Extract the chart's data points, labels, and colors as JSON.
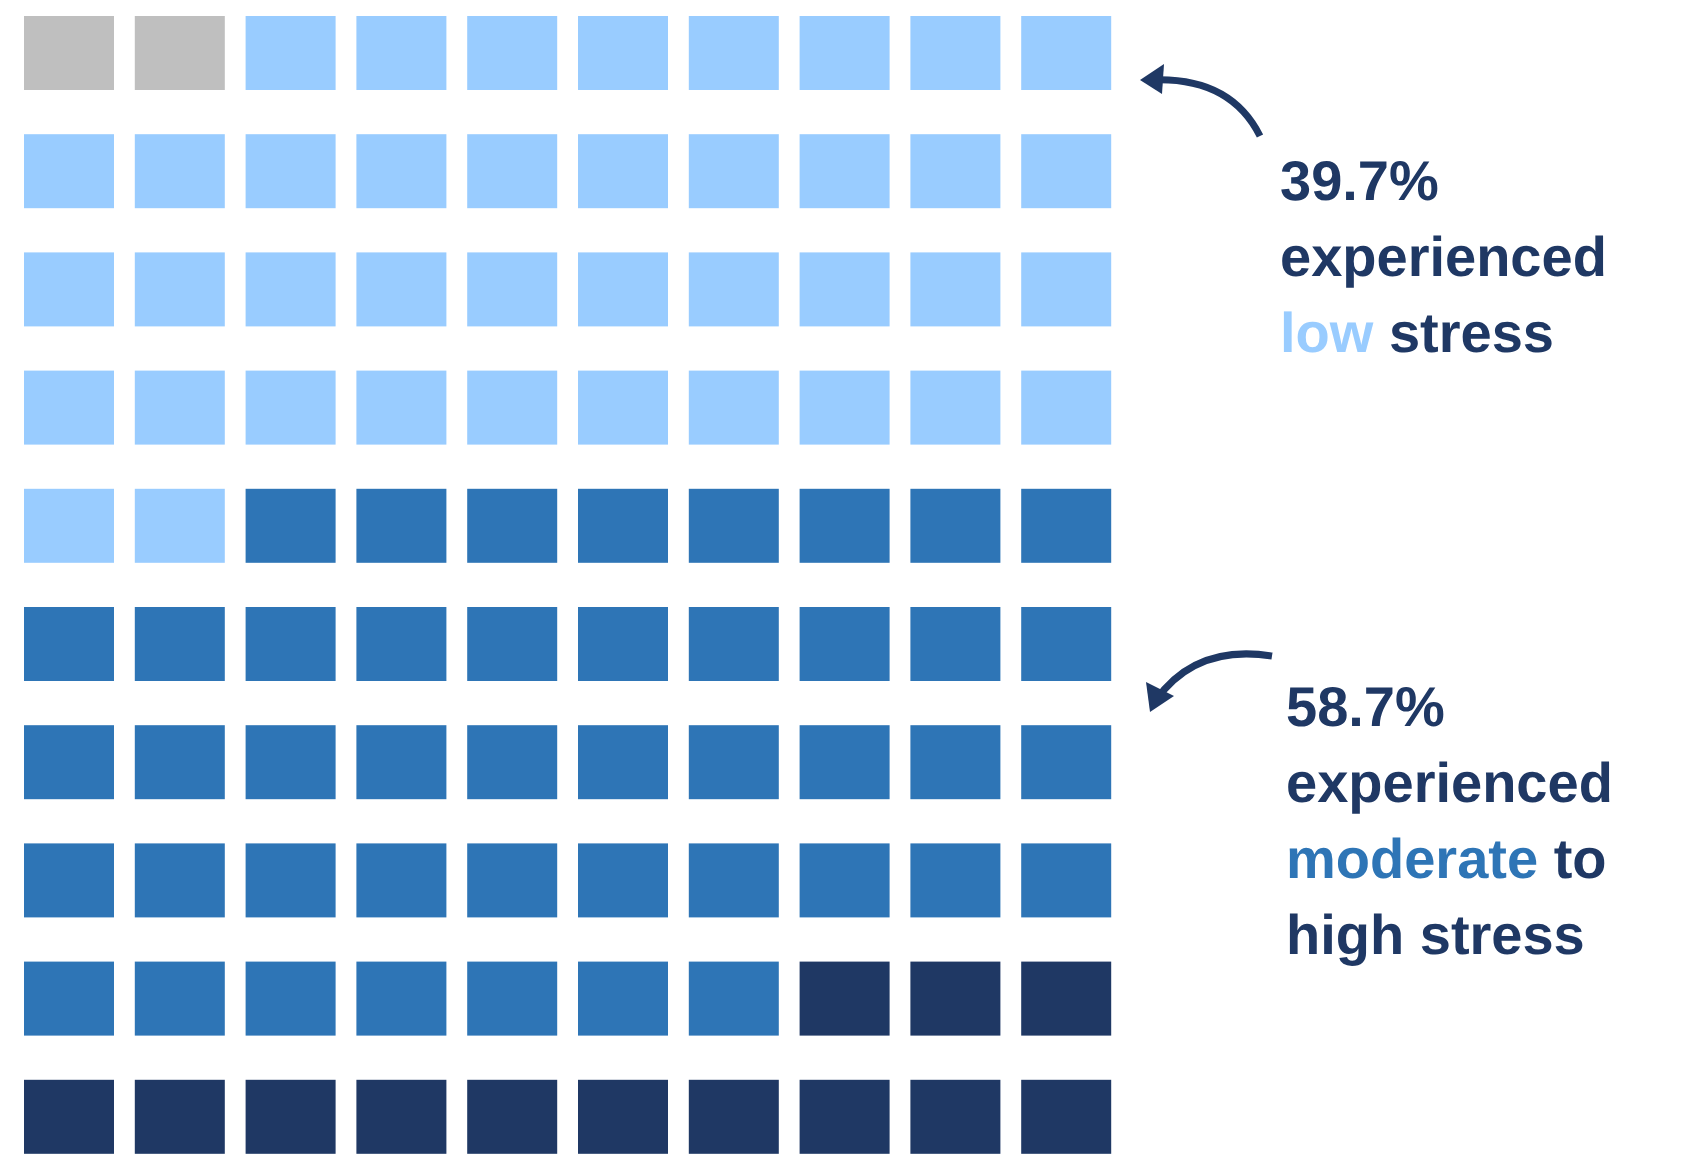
{
  "chart_data": {
    "type": "other",
    "categories": [
      "low",
      "moderate"
    ],
    "values": [
      39.7,
      58.7
    ],
    "value_labels": [
      "39.7%",
      "58.7%"
    ],
    "colors": [
      "#99ccff",
      "#2e75b6"
    ],
    "annotations": [
      "experienced",
      "stress",
      "experienced",
      "to high stress"
    ]
  }
}
